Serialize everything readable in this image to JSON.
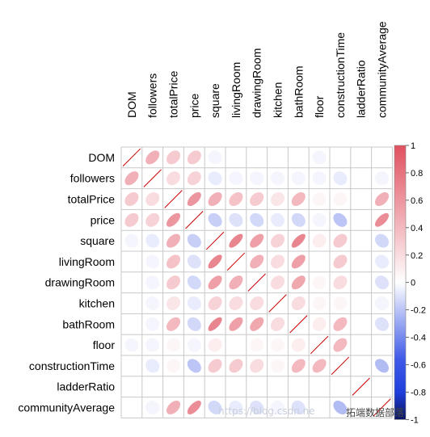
{
  "chart_data": {
    "type": "heatmap",
    "title": "",
    "variables": [
      "DOM",
      "followers",
      "totalPrice",
      "price",
      "square",
      "livingRoom",
      "drawingRoom",
      "kitchen",
      "bathRoom",
      "floor",
      "constructionTime",
      "ladderRatio",
      "communityAverage"
    ],
    "matrix": [
      [
        1.0,
        0.45,
        0.3,
        0.3,
        -0.05,
        0.0,
        0.0,
        0.0,
        0.0,
        -0.05,
        0.0,
        0.0,
        0.0
      ],
      [
        0.45,
        1.0,
        0.2,
        0.25,
        -0.1,
        -0.05,
        -0.05,
        -0.05,
        -0.05,
        -0.05,
        -0.1,
        0.0,
        -0.05
      ],
      [
        0.3,
        0.2,
        1.0,
        0.6,
        0.45,
        0.35,
        0.3,
        0.15,
        0.4,
        0.05,
        0.05,
        0.0,
        0.45
      ],
      [
        0.3,
        0.25,
        0.6,
        1.0,
        -0.25,
        -0.15,
        -0.2,
        -0.1,
        -0.2,
        -0.05,
        -0.3,
        0.0,
        0.65
      ],
      [
        -0.05,
        -0.1,
        0.45,
        -0.25,
        1.0,
        0.7,
        0.55,
        0.25,
        0.7,
        0.1,
        0.3,
        0.0,
        -0.2
      ],
      [
        0.0,
        -0.05,
        0.35,
        -0.15,
        0.7,
        1.0,
        0.45,
        0.2,
        0.55,
        0.0,
        0.3,
        0.0,
        -0.1
      ],
      [
        0.0,
        -0.05,
        0.3,
        -0.2,
        0.55,
        0.45,
        1.0,
        0.2,
        0.5,
        0.05,
        0.2,
        0.0,
        -0.15
      ],
      [
        0.0,
        -0.05,
        0.15,
        -0.1,
        0.25,
        0.2,
        0.2,
        1.0,
        0.2,
        0.05,
        0.05,
        0.0,
        -0.05
      ],
      [
        0.0,
        -0.05,
        0.4,
        -0.2,
        0.7,
        0.55,
        0.5,
        0.2,
        1.0,
        0.1,
        0.4,
        0.0,
        -0.15
      ],
      [
        -0.05,
        -0.05,
        0.05,
        -0.05,
        0.1,
        0.0,
        0.05,
        0.05,
        0.1,
        1.0,
        0.4,
        0.0,
        0.0
      ],
      [
        0.0,
        -0.1,
        0.05,
        -0.3,
        0.3,
        0.3,
        0.2,
        0.05,
        0.4,
        0.4,
        1.0,
        0.0,
        -0.35
      ],
      [
        0.0,
        0.0,
        0.0,
        0.0,
        0.0,
        0.0,
        0.0,
        0.0,
        0.0,
        0.0,
        0.0,
        1.0,
        0.0
      ],
      [
        0.0,
        -0.05,
        0.45,
        0.65,
        -0.2,
        -0.1,
        -0.15,
        -0.05,
        -0.15,
        0.0,
        -0.35,
        0.0,
        1.0
      ]
    ],
    "colorbar": {
      "range": [
        -1,
        1
      ],
      "ticks": [
        "1",
        "0.8",
        "0.6",
        "0.4",
        "0.2",
        "0",
        "-0.2",
        "-0.4",
        "-0.6",
        "-0.8",
        "-1"
      ]
    },
    "colors": {
      "negative": "#1f3fdc",
      "neutral": "#ffffff",
      "positive": "#e0505f",
      "grid": "#c8c8c8",
      "diagonal_line": "#cc0000"
    }
  },
  "watermark": {
    "url_text": "https://blog.csdn.ne",
    "brand_text": "拓端数据部落"
  }
}
